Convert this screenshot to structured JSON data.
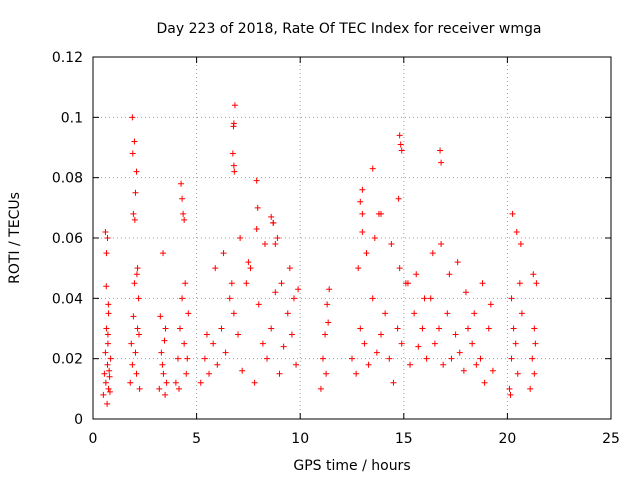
{
  "chart_data": {
    "type": "scatter",
    "title": "Day 223 of 2018, Rate Of TEC Index for receiver wmga",
    "xlabel": "GPS time / hours",
    "ylabel": "ROTI / TECUs",
    "xlim": [
      0,
      25
    ],
    "ylim": [
      0,
      0.12
    ],
    "xticks": [
      "0",
      "5",
      "10",
      "15",
      "20",
      "25"
    ],
    "yticks": [
      "0",
      "0.02",
      "0.04",
      "0.06",
      "0.08",
      "0.1",
      "0.12"
    ],
    "grid": true,
    "marker": "+",
    "color": "#ff0000",
    "series": [
      {
        "x": [
          0.5,
          0.55,
          0.6,
          0.62,
          0.65,
          0.7,
          0.72,
          0.75,
          0.8,
          0.85,
          0.6,
          0.65,
          0.7,
          0.75,
          0.68,
          0.72,
          0.78,
          0.82,
          0.64,
          0.74,
          1.8,
          1.85,
          1.9,
          1.95,
          2.0,
          2.05,
          2.1,
          2.15,
          2.2,
          2.25,
          1.9,
          2.0,
          2.1,
          1.95,
          2.05,
          2.15,
          1.92,
          2.02,
          2.12,
          2.22,
          3.2,
          3.3,
          3.4,
          3.5,
          3.35,
          3.45,
          3.25,
          3.55,
          3.38,
          3.48,
          4.0,
          4.1,
          4.2,
          4.3,
          4.4,
          4.5,
          4.6,
          4.25,
          4.35,
          4.45,
          4.15,
          4.55,
          4.3,
          4.4,
          5.2,
          5.4,
          5.6,
          5.8,
          6.0,
          6.2,
          6.4,
          6.6,
          6.8,
          7.0,
          7.2,
          7.4,
          7.6,
          7.8,
          8.0,
          8.2,
          8.4,
          8.6,
          8.8,
          9.0,
          9.2,
          9.4,
          9.6,
          9.8,
          5.5,
          5.9,
          6.3,
          6.7,
          6.8,
          6.85,
          7.1,
          7.5,
          7.9,
          8.3,
          8.7,
          8.9,
          9.1,
          9.5,
          9.7,
          6.75,
          6.8,
          6.78,
          6.82,
          7.9,
          7.95,
          8.6,
          8.7,
          8.8,
          9.9,
          11.0,
          11.1,
          11.2,
          11.3,
          11.4,
          11.25,
          11.35,
          12.5,
          12.7,
          12.9,
          13.1,
          13.3,
          13.5,
          13.7,
          13.9,
          14.1,
          14.3,
          14.5,
          14.7,
          14.9,
          15.1,
          15.3,
          15.5,
          15.7,
          15.9,
          16.1,
          16.3,
          16.5,
          16.7,
          16.9,
          17.1,
          17.3,
          17.5,
          17.7,
          17.9,
          18.1,
          18.3,
          18.5,
          18.7,
          18.9,
          19.1,
          19.3,
          12.8,
          13.0,
          13.2,
          13.6,
          13.8,
          14.4,
          14.8,
          15.2,
          15.6,
          16.0,
          16.4,
          16.8,
          17.2,
          17.6,
          18.0,
          18.4,
          18.8,
          19.2,
          12.9,
          13.0,
          13.5,
          13.9,
          14.8,
          14.85,
          14.9,
          16.75,
          16.8,
          14.75,
          13.0,
          20.1,
          20.2,
          20.3,
          20.4,
          20.5,
          20.6,
          20.7,
          20.25,
          20.45,
          20.65,
          20.2,
          20.15,
          21.1,
          21.2,
          21.3,
          21.4,
          21.25,
          21.35,
          21.3
        ],
        "y": [
          0.008,
          0.015,
          0.022,
          0.012,
          0.03,
          0.018,
          0.025,
          0.01,
          0.014,
          0.02,
          0.062,
          0.055,
          0.06,
          0.035,
          0.005,
          0.028,
          0.016,
          0.009,
          0.044,
          0.038,
          0.012,
          0.025,
          0.018,
          0.034,
          0.045,
          0.022,
          0.015,
          0.03,
          0.04,
          0.01,
          0.1,
          0.092,
          0.082,
          0.068,
          0.075,
          0.05,
          0.088,
          0.066,
          0.048,
          0.028,
          0.01,
          0.022,
          0.015,
          0.03,
          0.018,
          0.026,
          0.034,
          0.012,
          0.055,
          0.008,
          0.012,
          0.02,
          0.03,
          0.04,
          0.025,
          0.015,
          0.035,
          0.078,
          0.068,
          0.045,
          0.01,
          0.02,
          0.073,
          0.066,
          0.012,
          0.02,
          0.015,
          0.025,
          0.018,
          0.03,
          0.022,
          0.04,
          0.035,
          0.028,
          0.016,
          0.045,
          0.05,
          0.012,
          0.038,
          0.025,
          0.02,
          0.03,
          0.042,
          0.015,
          0.024,
          0.035,
          0.028,
          0.018,
          0.028,
          0.05,
          0.055,
          0.045,
          0.098,
          0.104,
          0.06,
          0.052,
          0.063,
          0.058,
          0.065,
          0.06,
          0.045,
          0.05,
          0.04,
          0.088,
          0.084,
          0.097,
          0.082,
          0.079,
          0.07,
          0.067,
          0.065,
          0.058,
          0.043,
          0.01,
          0.02,
          0.028,
          0.038,
          0.043,
          0.015,
          0.032,
          0.02,
          0.015,
          0.03,
          0.025,
          0.018,
          0.04,
          0.022,
          0.028,
          0.035,
          0.02,
          0.012,
          0.03,
          0.025,
          0.045,
          0.018,
          0.035,
          0.024,
          0.03,
          0.02,
          0.04,
          0.025,
          0.03,
          0.018,
          0.035,
          0.02,
          0.028,
          0.022,
          0.016,
          0.03,
          0.025,
          0.018,
          0.02,
          0.012,
          0.03,
          0.016,
          0.05,
          0.062,
          0.055,
          0.06,
          0.068,
          0.058,
          0.05,
          0.045,
          0.048,
          0.04,
          0.055,
          0.058,
          0.048,
          0.052,
          0.042,
          0.035,
          0.045,
          0.038,
          0.072,
          0.076,
          0.083,
          0.068,
          0.094,
          0.091,
          0.089,
          0.089,
          0.085,
          0.073,
          0.068,
          0.01,
          0.02,
          0.03,
          0.025,
          0.015,
          0.045,
          0.035,
          0.068,
          0.062,
          0.058,
          0.04,
          0.008,
          0.01,
          0.02,
          0.03,
          0.045,
          0.048,
          0.025,
          0.015
        ]
      }
    ]
  }
}
